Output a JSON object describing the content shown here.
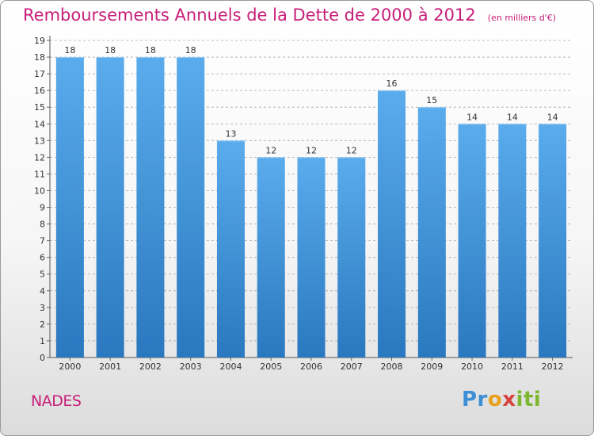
{
  "chart_data": {
    "type": "bar",
    "title": "Remboursements Annuels de la Dette de 2000 à 2012",
    "subtitle": "(en milliers d'€)",
    "categories": [
      "2000",
      "2001",
      "2002",
      "2003",
      "2004",
      "2005",
      "2006",
      "2007",
      "2008",
      "2009",
      "2010",
      "2011",
      "2012"
    ],
    "values": [
      18,
      18,
      18,
      18,
      13,
      12,
      12,
      12,
      16,
      15,
      14,
      14,
      14
    ],
    "ylim": [
      0,
      19
    ],
    "yticks": [
      0,
      1,
      2,
      3,
      4,
      5,
      6,
      7,
      8,
      9,
      10,
      11,
      12,
      13,
      14,
      15,
      16,
      17,
      18,
      19
    ],
    "grid": true,
    "bar_color": "#4f9fe0",
    "bar_color_dark": "#2a78bf"
  },
  "footer": {
    "commune": "NADES",
    "brand": "Proxiti"
  },
  "colors": {
    "title": "#c71e78",
    "grid": "#a9a9a9"
  }
}
